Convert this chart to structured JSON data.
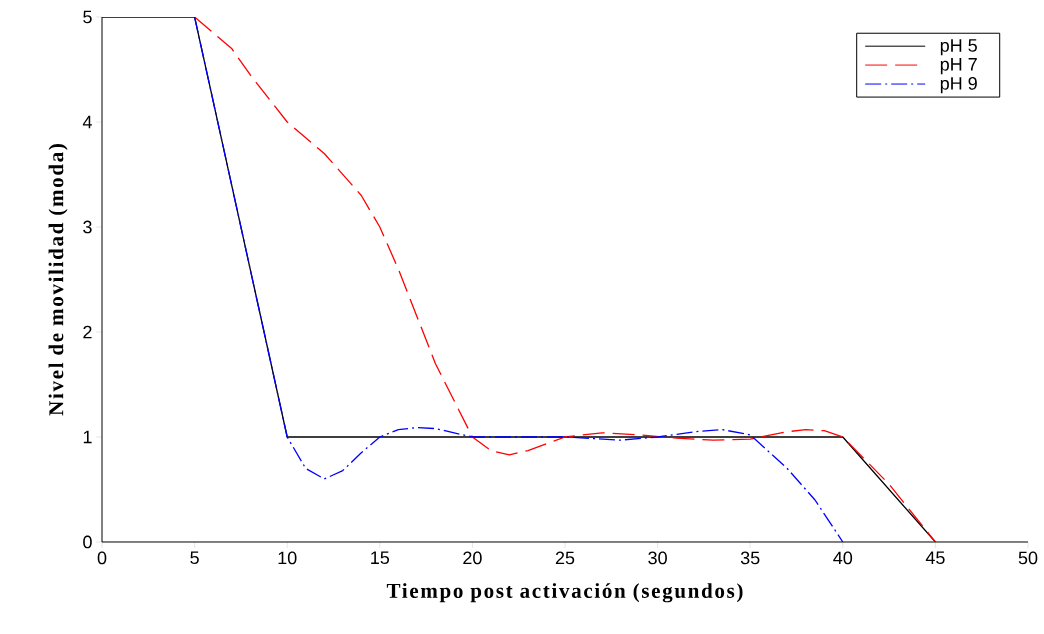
{
  "chart_data": {
    "type": "line",
    "xlabel": "Tiempo post activación (segundos)",
    "ylabel": "Nivel de movilidad (moda)",
    "xlim": [
      0,
      50
    ],
    "xticks": [
      0,
      5,
      10,
      15,
      20,
      25,
      30,
      35,
      40,
      45,
      50
    ],
    "ylim": [
      0,
      5
    ],
    "yticks": [
      0,
      1,
      2,
      3,
      4,
      5
    ],
    "legend": "top right",
    "grid": false,
    "series": [
      {
        "name": "pH 5",
        "color": "#000000",
        "line_style": "solid",
        "x": [
          0,
          5,
          10,
          40,
          45
        ],
        "values": [
          5,
          5,
          1,
          1,
          0
        ]
      },
      {
        "name": "pH 7",
        "color": "#ff0000",
        "line_style": "dashed",
        "x": [
          5,
          7,
          8,
          10,
          12,
          14,
          15,
          16,
          18,
          20,
          21,
          22,
          23,
          25,
          27,
          29,
          31,
          33,
          35,
          37,
          38,
          39,
          40,
          42.5,
          45
        ],
        "values": [
          5,
          4.7,
          4.45,
          4.0,
          3.7,
          3.3,
          3.0,
          2.6,
          1.7,
          1.0,
          0.87,
          0.83,
          0.87,
          1.0,
          1.04,
          1.02,
          0.99,
          0.97,
          0.98,
          1.05,
          1.07,
          1.06,
          1.0,
          0.55,
          0
        ]
      },
      {
        "name": "pH 9",
        "color": "#0000ff",
        "line_style": "dashdot",
        "x": [
          5,
          6,
          7,
          8,
          9,
          10,
          11,
          12,
          13,
          14,
          15,
          16,
          17,
          18,
          20,
          25,
          28,
          30,
          32,
          33.5,
          35,
          37,
          38.5,
          40
        ],
        "values": [
          5,
          4.2,
          3.4,
          2.6,
          1.8,
          1.0,
          0.7,
          0.6,
          0.68,
          0.85,
          1.0,
          1.07,
          1.09,
          1.08,
          1.0,
          1.0,
          0.97,
          1.0,
          1.05,
          1.07,
          1.02,
          0.7,
          0.4,
          0
        ]
      }
    ]
  }
}
